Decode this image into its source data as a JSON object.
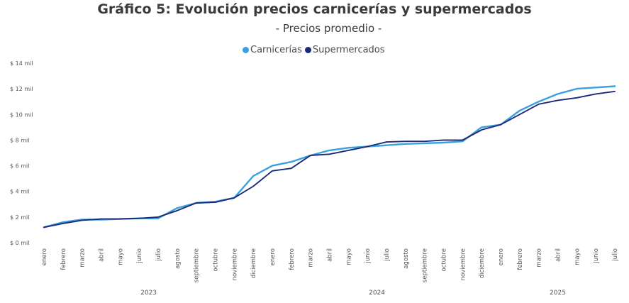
{
  "chart_data": {
    "type": "line",
    "title": "Gráfico 5: Evolución precios carnicerías y supermercados",
    "subtitle": "- Precios promedio -",
    "categories": [
      "enero",
      "febrero",
      "marzo",
      "abril",
      "mayo",
      "junio",
      "julio",
      "agosto",
      "septiembre",
      "octubre",
      "noviembre",
      "diciembre",
      "enero",
      "febrero",
      "marzo",
      "abril",
      "mayo",
      "junio",
      "julio",
      "agosto",
      "septiembre",
      "octubre",
      "noviembre",
      "diciembre",
      "enero",
      "febrero",
      "marzo",
      "abril",
      "mayo",
      "junio",
      "julio"
    ],
    "years": [
      {
        "label": "2023",
        "start": 0,
        "end": 11
      },
      {
        "label": "2024",
        "start": 12,
        "end": 23
      },
      {
        "label": "2025",
        "start": 24,
        "end": 30
      }
    ],
    "yticks": [
      {
        "value": 0,
        "label": "$ 0 mil"
      },
      {
        "value": 2,
        "label": "$ 2 mil"
      },
      {
        "value": 4,
        "label": "$ 4 mil"
      },
      {
        "value": 6,
        "label": "$ 6 mil"
      },
      {
        "value": 8,
        "label": "$ 8 mil"
      },
      {
        "value": 10,
        "label": "$ 10 mil"
      },
      {
        "value": 12,
        "label": "$ 12 mil"
      },
      {
        "value": 14,
        "label": "$ 14 mil"
      }
    ],
    "ylim": [
      0,
      14
    ],
    "grid": false,
    "legend_position": "top-center",
    "series": [
      {
        "name": "Carnicerías",
        "color": "#3aa0e0",
        "values": [
          1.2,
          1.6,
          1.8,
          1.8,
          1.85,
          1.9,
          1.9,
          2.7,
          3.1,
          3.2,
          3.5,
          5.2,
          6.0,
          6.3,
          6.8,
          7.2,
          7.4,
          7.5,
          7.6,
          7.7,
          7.75,
          7.8,
          7.9,
          9.0,
          9.2,
          10.3,
          11.0,
          11.6,
          12.0,
          12.1,
          12.2
        ]
      },
      {
        "name": "Supermercados",
        "color": "#1d2a78",
        "values": [
          1.2,
          1.5,
          1.75,
          1.85,
          1.85,
          1.9,
          2.0,
          2.5,
          3.1,
          3.15,
          3.5,
          4.4,
          5.6,
          5.8,
          6.8,
          6.9,
          7.2,
          7.5,
          7.85,
          7.9,
          7.9,
          8.0,
          8.0,
          8.8,
          9.2,
          10.0,
          10.8,
          11.1,
          11.3,
          11.6,
          11.8
        ]
      }
    ]
  }
}
